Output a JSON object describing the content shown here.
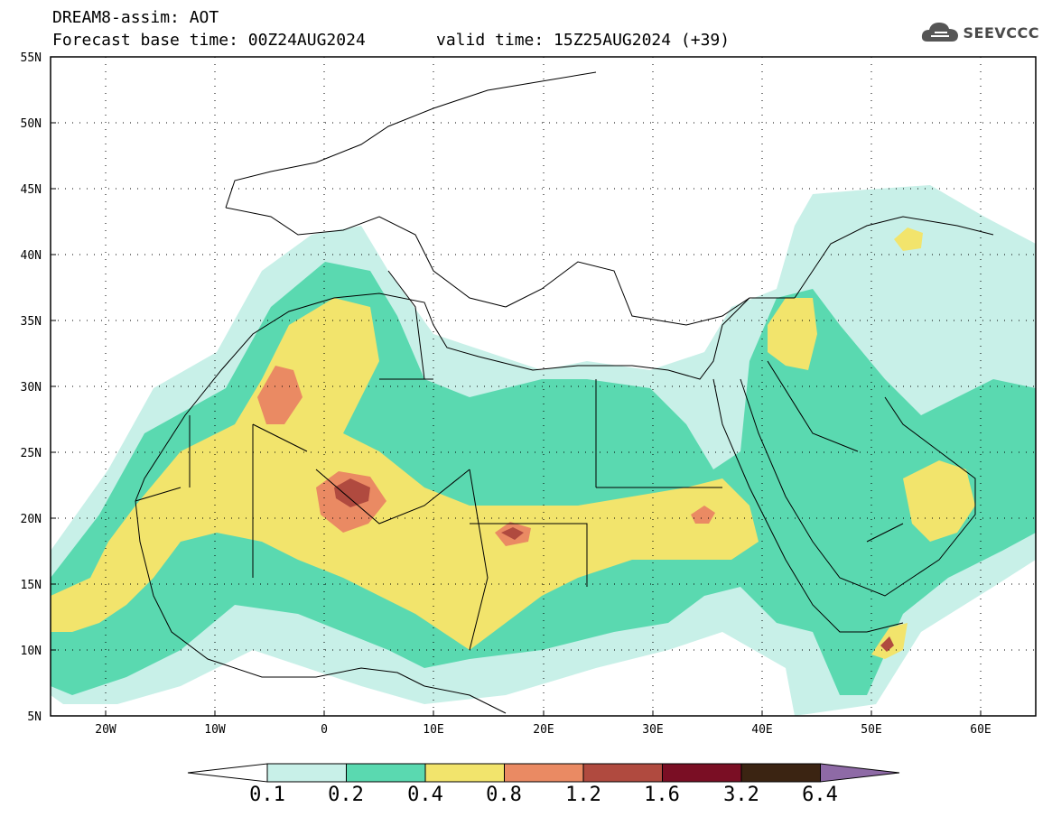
{
  "header": {
    "line1": "DREAM8-assim: AOT",
    "line2": "Forecast base time: 00Z24AUG2024",
    "line3": "valid time: 15Z25AUG2024 (+39)"
  },
  "logo": {
    "text": "SEEVCCC",
    "icon": "cloud-icon"
  },
  "axes": {
    "lat_labels": [
      "55N",
      "50N",
      "45N",
      "40N",
      "35N",
      "30N",
      "25N",
      "20N",
      "15N",
      "10N",
      "5N"
    ],
    "lon_labels": [
      "20W",
      "10W",
      "0",
      "10E",
      "20E",
      "30E",
      "40E",
      "50E",
      "60E"
    ]
  },
  "colorbar": {
    "labels": [
      "0.1",
      "0.2",
      "0.4",
      "0.8",
      "1.2",
      "1.6",
      "3.2",
      "6.4"
    ],
    "colors": [
      "#c8f0e8",
      "#5ad9b0",
      "#f2e46c",
      "#ea8a63",
      "#b04a3f",
      "#7a0e24",
      "#3b2412",
      "#8e6aa6"
    ],
    "under_color": "#ffffff"
  },
  "palette": {
    "c1": "#c8f0e8",
    "c2": "#5ad9b0",
    "c3": "#f2e46c",
    "c4": "#ea8a63",
    "c5": "#b04a3f",
    "c6": "#7a0e24"
  }
}
